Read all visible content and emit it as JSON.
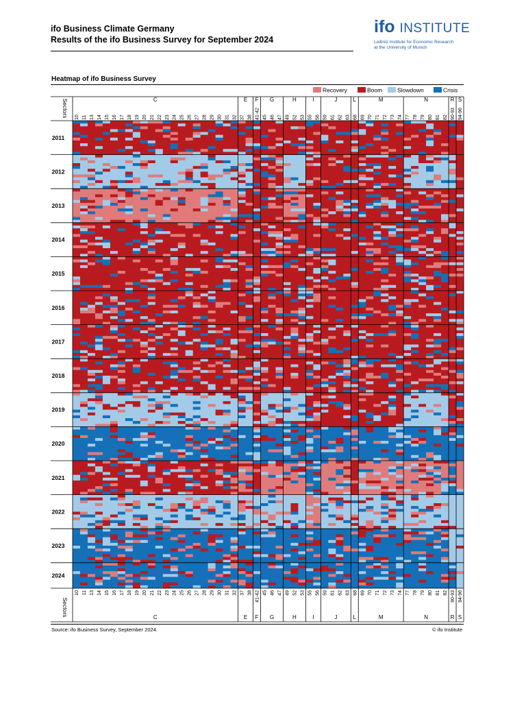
{
  "header": {
    "title": "ifo Business Climate Germany",
    "subtitle": "Results of the ifo Business Survey for September 2024"
  },
  "logo": {
    "ifo": "ifo",
    "institute": "INSTITUTE",
    "line1": "Leibniz Institute for Economic Research",
    "line2": "at the University of Munich"
  },
  "chart_title": "Heatmap of ifo Business Survey",
  "footer": {
    "source": "Source: ifo Business Survey, September 2024.",
    "copyright": "© ifo Institute"
  },
  "chart_data": {
    "type": "heatmap",
    "title": "Heatmap of ifo Business Survey",
    "axis_label": "Sectors",
    "legend": [
      {
        "name": "Recovery",
        "color": "#e07b7b"
      },
      {
        "name": "Boom",
        "color": "#b81b1f"
      },
      {
        "name": "Slowdown",
        "color": "#a3cbe8"
      },
      {
        "name": "Crisis",
        "color": "#1570b8"
      }
    ],
    "legend_position": "top-right",
    "years": [
      "2011",
      "2012",
      "2013",
      "2014",
      "2015",
      "2016",
      "2017",
      "2018",
      "2019",
      "2020",
      "2021",
      "2022",
      "2023",
      "2024"
    ],
    "sector_groups": [
      {
        "label": "C",
        "codes": [
          "10",
          "11",
          "13",
          "14",
          "15",
          "16",
          "17",
          "18",
          "19",
          "20",
          "21",
          "22",
          "23",
          "24",
          "25",
          "26",
          "27",
          "28",
          "29",
          "30",
          "31",
          "32"
        ]
      },
      {
        "label": "E",
        "codes": [
          "37",
          "38"
        ]
      },
      {
        "label": "F",
        "codes": [
          "41-42"
        ]
      },
      {
        "label": "G",
        "codes": [
          "45",
          "46",
          "47"
        ]
      },
      {
        "label": "H",
        "codes": [
          "49",
          "52",
          "53"
        ]
      },
      {
        "label": "I",
        "codes": [
          "55",
          "56"
        ]
      },
      {
        "label": "J",
        "codes": [
          "59",
          "61",
          "62",
          "63"
        ]
      },
      {
        "label": "L",
        "codes": [
          "68"
        ]
      },
      {
        "label": "M",
        "codes": [
          "69",
          "70",
          "71",
          "72",
          "73",
          "74"
        ]
      },
      {
        "label": "N",
        "codes": [
          "77",
          "78",
          "79",
          "80",
          "81",
          "82"
        ]
      },
      {
        "label": "R",
        "codes": [
          "90-93"
        ]
      },
      {
        "label": "S",
        "codes": [
          "94-96"
        ]
      }
    ],
    "phase_by_year": [
      {
        "year": "2011",
        "C": "Boom",
        "E": "Boom",
        "F": "Boom",
        "G": "Boom",
        "H": "Boom",
        "I": "Boom",
        "J": "Boom",
        "L": "Boom",
        "M": "Boom",
        "N": "Boom",
        "R": "Boom",
        "S": "Boom"
      },
      {
        "year": "2012",
        "C": "Slowdown",
        "E": "Slowdown",
        "F": "Boom",
        "G": "Boom",
        "H": "Slowdown",
        "I": "Boom",
        "J": "Boom",
        "L": "Boom",
        "M": "Boom",
        "N": "Slowdown",
        "R": "Slowdown",
        "S": "Boom"
      },
      {
        "year": "2013",
        "C": "Recovery",
        "E": "Boom",
        "F": "Boom",
        "G": "Boom",
        "H": "Recovery",
        "I": "Boom",
        "J": "Boom",
        "L": "Boom",
        "M": "Boom",
        "N": "Boom",
        "R": "Boom",
        "S": "Boom"
      },
      {
        "year": "2014",
        "C": "Boom",
        "E": "Boom",
        "F": "Boom",
        "G": "Boom",
        "H": "Boom",
        "I": "Boom",
        "J": "Boom",
        "L": "Boom",
        "M": "Boom",
        "N": "Boom",
        "R": "Boom",
        "S": "Boom"
      },
      {
        "year": "2015",
        "C": "Boom",
        "E": "Boom",
        "F": "Boom",
        "G": "Boom",
        "H": "Boom",
        "I": "Boom",
        "J": "Boom",
        "L": "Boom",
        "M": "Boom",
        "N": "Boom",
        "R": "Boom",
        "S": "Boom"
      },
      {
        "year": "2016",
        "C": "Boom",
        "E": "Boom",
        "F": "Boom",
        "G": "Boom",
        "H": "Boom",
        "I": "Boom",
        "J": "Boom",
        "L": "Boom",
        "M": "Boom",
        "N": "Boom",
        "R": "Boom",
        "S": "Boom"
      },
      {
        "year": "2017",
        "C": "Boom",
        "E": "Boom",
        "F": "Boom",
        "G": "Boom",
        "H": "Boom",
        "I": "Boom",
        "J": "Boom",
        "L": "Boom",
        "M": "Boom",
        "N": "Boom",
        "R": "Boom",
        "S": "Boom"
      },
      {
        "year": "2018",
        "C": "Boom",
        "E": "Boom",
        "F": "Boom",
        "G": "Boom",
        "H": "Boom",
        "I": "Boom",
        "J": "Boom",
        "L": "Boom",
        "M": "Boom",
        "N": "Boom",
        "R": "Boom",
        "S": "Boom"
      },
      {
        "year": "2019",
        "C": "Slowdown",
        "E": "Slowdown",
        "F": "Boom",
        "G": "Slowdown",
        "H": "Slowdown",
        "I": "Boom",
        "J": "Boom",
        "L": "Boom",
        "M": "Boom",
        "N": "Slowdown",
        "R": "Boom",
        "S": "Boom"
      },
      {
        "year": "2020",
        "C": "Crisis",
        "E": "Crisis",
        "F": "Slowdown",
        "G": "Crisis",
        "H": "Crisis",
        "I": "Crisis",
        "J": "Crisis",
        "L": "Crisis",
        "M": "Crisis",
        "N": "Crisis",
        "R": "Crisis",
        "S": "Crisis"
      },
      {
        "year": "2021",
        "C": "Boom",
        "E": "Recovery",
        "F": "Boom",
        "G": "Recovery",
        "H": "Recovery",
        "I": "Crisis",
        "J": "Recovery",
        "L": "Boom",
        "M": "Recovery",
        "N": "Recovery",
        "R": "Crisis",
        "S": "Recovery"
      },
      {
        "year": "2022",
        "C": "Slowdown",
        "E": "Slowdown",
        "F": "Slowdown",
        "G": "Slowdown",
        "H": "Slowdown",
        "I": "Recovery",
        "J": "Slowdown",
        "L": "Slowdown",
        "M": "Slowdown",
        "N": "Slowdown",
        "R": "Slowdown",
        "S": "Slowdown"
      },
      {
        "year": "2023",
        "C": "Crisis",
        "E": "Crisis",
        "F": "Crisis",
        "G": "Crisis",
        "H": "Crisis",
        "I": "Crisis",
        "J": "Crisis",
        "L": "Crisis",
        "M": "Crisis",
        "N": "Crisis",
        "R": "Slowdown",
        "S": "Slowdown"
      },
      {
        "year": "2024",
        "C": "Crisis",
        "E": "Crisis",
        "F": "Crisis",
        "G": "Crisis",
        "H": "Crisis",
        "I": "Crisis",
        "J": "Crisis",
        "L": "Crisis",
        "M": "Crisis",
        "N": "Crisis",
        "R": "Crisis",
        "S": "Slowdown"
      }
    ]
  }
}
